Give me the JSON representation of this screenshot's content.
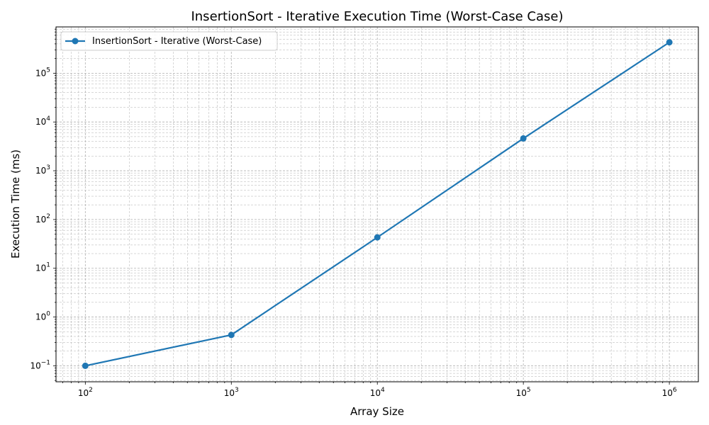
{
  "chart_data": {
    "type": "line",
    "title": "InsertionSort - Iterative Execution Time (Worst-Case Case)",
    "xlabel": "Array Size",
    "ylabel": "Execution Time (ms)",
    "xscale": "log",
    "yscale": "log",
    "xlim": [
      63,
      1580000
    ],
    "ylim": [
      0.047,
      890000
    ],
    "x_ticks": [
      {
        "base": "10",
        "exp": "2",
        "value": 100
      },
      {
        "base": "10",
        "exp": "3",
        "value": 1000
      },
      {
        "base": "10",
        "exp": "4",
        "value": 10000
      },
      {
        "base": "10",
        "exp": "5",
        "value": 100000
      },
      {
        "base": "10",
        "exp": "6",
        "value": 1000000
      }
    ],
    "y_ticks": [
      {
        "base": "10",
        "exp": "−1",
        "value": 0.1
      },
      {
        "base": "10",
        "exp": "0",
        "value": 1
      },
      {
        "base": "10",
        "exp": "1",
        "value": 10
      },
      {
        "base": "10",
        "exp": "2",
        "value": 100
      },
      {
        "base": "10",
        "exp": "3",
        "value": 1000
      },
      {
        "base": "10",
        "exp": "4",
        "value": 10000
      },
      {
        "base": "10",
        "exp": "5",
        "value": 100000
      }
    ],
    "grid": true,
    "legend_position": "top-left",
    "series": [
      {
        "name": "InsertionSort - Iterative (Worst-Case)",
        "color": "#1f77b4",
        "marker": "circle",
        "x": [
          100,
          1000,
          10000,
          100000,
          1000000
        ],
        "y": [
          0.1,
          0.43,
          43,
          4600,
          430000
        ]
      }
    ]
  }
}
